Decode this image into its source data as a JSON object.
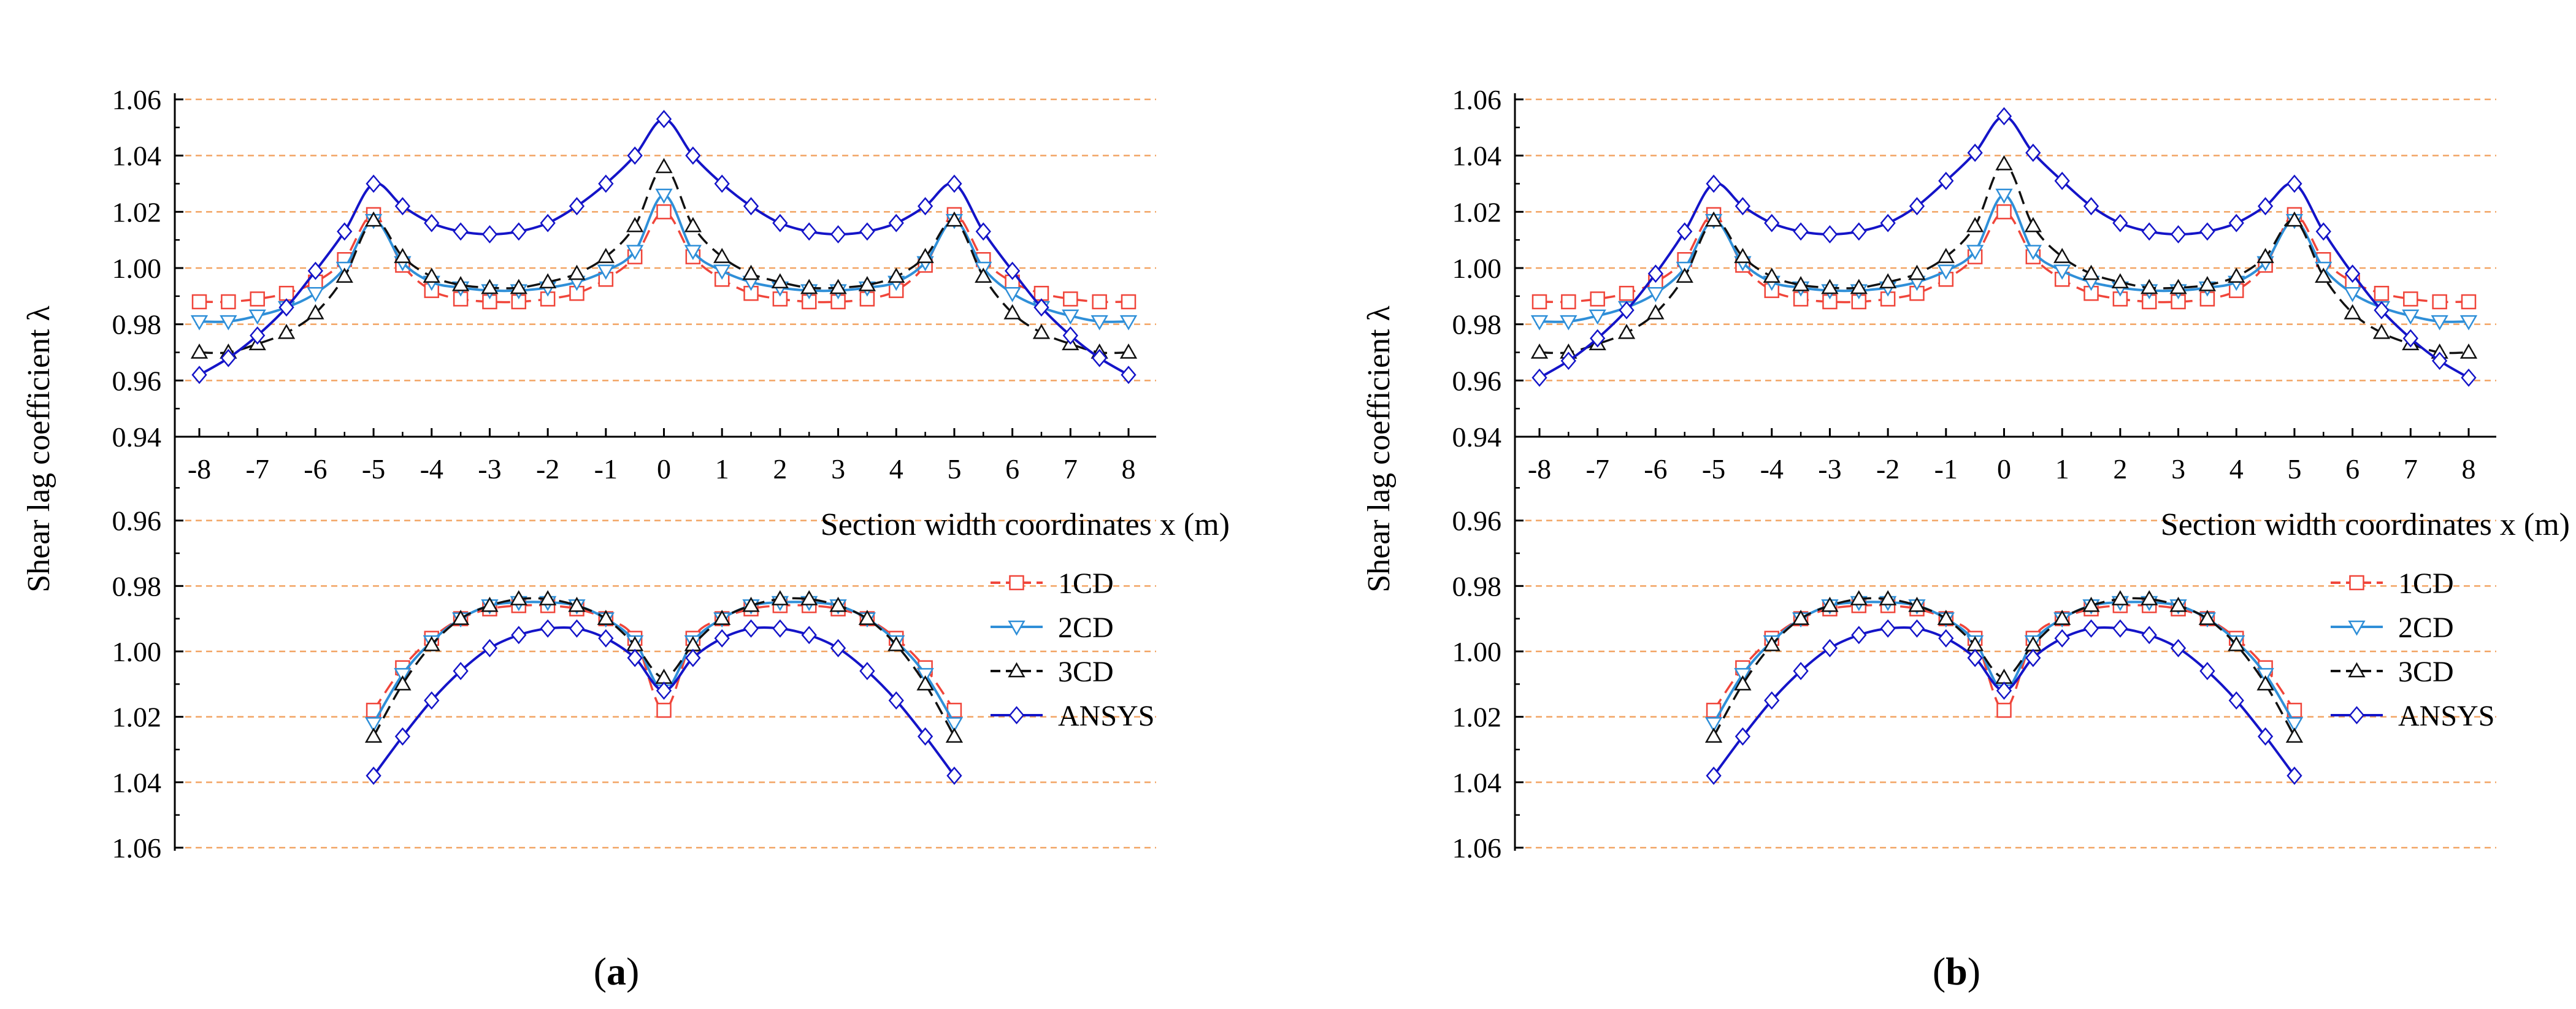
{
  "figure": {
    "panels": [
      {
        "label": "(a)",
        "label_letter": "a"
      },
      {
        "label": "(b)",
        "label_letter": "b"
      }
    ]
  },
  "colors": {
    "1CD": "#f0453a",
    "2CD": "#2f8fd8",
    "3CD": "#111111",
    "ANSYS": "#1414c8",
    "grid": "#f2a463"
  },
  "chart_data": [
    {
      "panel": "(a)",
      "type": "line",
      "title": "",
      "xlabel": "Section width coordinates x (m)",
      "ylabel": "Shear lag coefficient λ",
      "xlim": [
        -8.5,
        8.5
      ],
      "x_ticks": [
        -8,
        -7,
        -6,
        -5,
        -4,
        -3,
        -2,
        -1,
        0,
        1,
        2,
        3,
        4,
        5,
        6,
        7,
        8
      ],
      "y_ticks_top": [
        "0.94",
        "0.96",
        "0.98",
        "1.00",
        "1.02",
        "1.04",
        "1.06"
      ],
      "y_ticks_bottom": [
        "0.96",
        "0.98",
        "1.00",
        "1.02",
        "1.04",
        "1.06"
      ],
      "top_ylim": [
        0.94,
        1.06
      ],
      "bottom_ylim": [
        0.94,
        1.06
      ],
      "bottom_axis_inverted": true,
      "grid": true,
      "legend_position": "lower-right",
      "top_flange": {
        "x": [
          -8,
          -7.5,
          -7,
          -6.5,
          -6,
          -5.5,
          -5,
          -4.5,
          -4,
          -3.5,
          -3,
          -2.5,
          -2,
          -1.5,
          -1,
          -0.5,
          0,
          0.5,
          1,
          1.5,
          2,
          2.5,
          3,
          3.5,
          4,
          4.5,
          5,
          5.5,
          6,
          6.5,
          7,
          7.5,
          8
        ],
        "series": [
          {
            "name": "1CD",
            "style": "dashed",
            "marker": "square",
            "values": [
              0.988,
              0.988,
              0.989,
              0.991,
              0.995,
              1.003,
              1.019,
              1.001,
              0.992,
              0.989,
              0.988,
              0.988,
              0.989,
              0.991,
              0.996,
              1.004,
              1.02,
              1.004,
              0.996,
              0.991,
              0.989,
              0.988,
              0.988,
              0.989,
              0.992,
              1.001,
              1.019,
              1.003,
              0.995,
              0.991,
              0.989,
              0.988,
              0.988
            ]
          },
          {
            "name": "2CD",
            "style": "solid",
            "marker": "triangle-down",
            "values": [
              0.981,
              0.981,
              0.983,
              0.986,
              0.991,
              1.0,
              1.017,
              1.002,
              0.995,
              0.993,
              0.992,
              0.992,
              0.993,
              0.995,
              0.999,
              1.006,
              1.026,
              1.006,
              0.999,
              0.995,
              0.993,
              0.992,
              0.992,
              0.993,
              0.995,
              1.002,
              1.017,
              1.0,
              0.991,
              0.986,
              0.983,
              0.981,
              0.981
            ]
          },
          {
            "name": "3CD",
            "style": "dashed",
            "marker": "triangle-up",
            "values": [
              0.97,
              0.97,
              0.973,
              0.977,
              0.984,
              0.997,
              1.017,
              1.004,
              0.997,
              0.994,
              0.993,
              0.993,
              0.995,
              0.998,
              1.004,
              1.015,
              1.036,
              1.015,
              1.004,
              0.998,
              0.995,
              0.993,
              0.993,
              0.994,
              0.997,
              1.004,
              1.017,
              0.997,
              0.984,
              0.977,
              0.973,
              0.97,
              0.97
            ]
          },
          {
            "name": "ANSYS",
            "style": "solid",
            "marker": "diamond",
            "values": [
              0.962,
              0.968,
              0.976,
              0.986,
              0.999,
              1.013,
              1.03,
              1.022,
              1.016,
              1.013,
              1.012,
              1.013,
              1.016,
              1.022,
              1.03,
              1.04,
              1.053,
              1.04,
              1.03,
              1.022,
              1.016,
              1.013,
              1.012,
              1.013,
              1.016,
              1.022,
              1.03,
              1.013,
              0.999,
              0.986,
              0.976,
              0.968,
              0.962
            ]
          }
        ]
      },
      "bottom_flange": {
        "x": [
          -5,
          -4.5,
          -4,
          -3.5,
          -3,
          -2.5,
          -2,
          -1.5,
          -1,
          -0.5,
          0,
          0.5,
          1,
          1.5,
          2,
          2.5,
          3,
          3.5,
          4,
          4.5,
          5
        ],
        "series": [
          {
            "name": "1CD",
            "style": "dashed",
            "marker": "square",
            "values": [
              1.018,
              1.005,
              0.996,
              0.99,
              0.987,
              0.986,
              0.986,
              0.987,
              0.99,
              0.996,
              1.018,
              0.996,
              0.99,
              0.987,
              0.986,
              0.986,
              0.987,
              0.99,
              0.996,
              1.005,
              1.018
            ]
          },
          {
            "name": "2CD",
            "style": "solid",
            "marker": "triangle-down",
            "values": [
              1.022,
              1.007,
              0.997,
              0.99,
              0.986,
              0.985,
              0.985,
              0.986,
              0.99,
              0.997,
              1.012,
              0.997,
              0.99,
              0.986,
              0.985,
              0.985,
              0.986,
              0.99,
              0.997,
              1.007,
              1.022
            ]
          },
          {
            "name": "3CD",
            "style": "dashed",
            "marker": "triangle-up",
            "values": [
              1.026,
              1.01,
              0.998,
              0.99,
              0.986,
              0.984,
              0.984,
              0.986,
              0.99,
              0.998,
              1.008,
              0.998,
              0.99,
              0.986,
              0.984,
              0.984,
              0.986,
              0.99,
              0.998,
              1.01,
              1.026
            ]
          },
          {
            "name": "ANSYS",
            "style": "solid",
            "marker": "diamond",
            "values": [
              1.038,
              1.026,
              1.015,
              1.006,
              0.999,
              0.995,
              0.993,
              0.993,
              0.996,
              1.002,
              1.012,
              1.002,
              0.996,
              0.993,
              0.993,
              0.995,
              0.999,
              1.006,
              1.015,
              1.026,
              1.038
            ]
          }
        ]
      }
    },
    {
      "panel": "(b)",
      "type": "line",
      "title": "",
      "xlabel": "Section width coordinates x (m)",
      "ylabel": "Shear lag coefficient λ",
      "xlim": [
        -8.5,
        8.5
      ],
      "x_ticks": [
        -8,
        -7,
        -6,
        -5,
        -4,
        -3,
        -2,
        -1,
        0,
        1,
        2,
        3,
        4,
        5,
        6,
        7,
        8
      ],
      "y_ticks_top": [
        "0.94",
        "0.96",
        "0.98",
        "1.00",
        "1.02",
        "1.04",
        "1.06"
      ],
      "y_ticks_bottom": [
        "0.96",
        "0.98",
        "1.00",
        "1.02",
        "1.04",
        "1.06"
      ],
      "top_ylim": [
        0.94,
        1.06
      ],
      "bottom_ylim": [
        0.94,
        1.06
      ],
      "bottom_axis_inverted": true,
      "grid": true,
      "legend_position": "lower-right",
      "top_flange": {
        "x": [
          -8,
          -7.5,
          -7,
          -6.5,
          -6,
          -5.5,
          -5,
          -4.5,
          -4,
          -3.5,
          -3,
          -2.5,
          -2,
          -1.5,
          -1,
          -0.5,
          0,
          0.5,
          1,
          1.5,
          2,
          2.5,
          3,
          3.5,
          4,
          4.5,
          5,
          5.5,
          6,
          6.5,
          7,
          7.5,
          8
        ],
        "series": [
          {
            "name": "1CD",
            "style": "dashed",
            "marker": "square",
            "values": [
              0.988,
              0.988,
              0.989,
              0.991,
              0.995,
              1.003,
              1.019,
              1.001,
              0.992,
              0.989,
              0.988,
              0.988,
              0.989,
              0.991,
              0.996,
              1.004,
              1.02,
              1.004,
              0.996,
              0.991,
              0.989,
              0.988,
              0.988,
              0.989,
              0.992,
              1.001,
              1.019,
              1.003,
              0.995,
              0.991,
              0.989,
              0.988,
              0.988
            ]
          },
          {
            "name": "2CD",
            "style": "solid",
            "marker": "triangle-down",
            "values": [
              0.981,
              0.981,
              0.983,
              0.986,
              0.991,
              1.0,
              1.017,
              1.002,
              0.995,
              0.993,
              0.992,
              0.992,
              0.993,
              0.995,
              0.999,
              1.006,
              1.026,
              1.006,
              0.999,
              0.995,
              0.993,
              0.992,
              0.992,
              0.993,
              0.995,
              1.002,
              1.017,
              1.0,
              0.991,
              0.986,
              0.983,
              0.981,
              0.981
            ]
          },
          {
            "name": "3CD",
            "style": "dashed",
            "marker": "triangle-up",
            "values": [
              0.97,
              0.97,
              0.973,
              0.977,
              0.984,
              0.997,
              1.017,
              1.004,
              0.997,
              0.994,
              0.993,
              0.993,
              0.995,
              0.998,
              1.004,
              1.015,
              1.037,
              1.015,
              1.004,
              0.998,
              0.995,
              0.993,
              0.993,
              0.994,
              0.997,
              1.004,
              1.017,
              0.997,
              0.984,
              0.977,
              0.973,
              0.97,
              0.97
            ]
          },
          {
            "name": "ANSYS",
            "style": "solid",
            "marker": "diamond",
            "values": [
              0.961,
              0.967,
              0.975,
              0.985,
              0.998,
              1.013,
              1.03,
              1.022,
              1.016,
              1.013,
              1.012,
              1.013,
              1.016,
              1.022,
              1.031,
              1.041,
              1.054,
              1.041,
              1.031,
              1.022,
              1.016,
              1.013,
              1.012,
              1.013,
              1.016,
              1.022,
              1.03,
              1.013,
              0.998,
              0.985,
              0.975,
              0.967,
              0.961
            ]
          }
        ]
      },
      "bottom_flange": {
        "x": [
          -5,
          -4.5,
          -4,
          -3.5,
          -3,
          -2.5,
          -2,
          -1.5,
          -1,
          -0.5,
          0,
          0.5,
          1,
          1.5,
          2,
          2.5,
          3,
          3.5,
          4,
          4.5,
          5
        ],
        "series": [
          {
            "name": "1CD",
            "style": "dashed",
            "marker": "square",
            "values": [
              1.018,
              1.005,
              0.996,
              0.99,
              0.987,
              0.986,
              0.986,
              0.987,
              0.99,
              0.996,
              1.018,
              0.996,
              0.99,
              0.987,
              0.986,
              0.986,
              0.987,
              0.99,
              0.996,
              1.005,
              1.018
            ]
          },
          {
            "name": "2CD",
            "style": "solid",
            "marker": "triangle-down",
            "values": [
              1.022,
              1.007,
              0.997,
              0.99,
              0.986,
              0.985,
              0.985,
              0.986,
              0.99,
              0.997,
              1.012,
              0.997,
              0.99,
              0.986,
              0.985,
              0.985,
              0.986,
              0.99,
              0.997,
              1.007,
              1.022
            ]
          },
          {
            "name": "3CD",
            "style": "dashed",
            "marker": "triangle-up",
            "values": [
              1.026,
              1.01,
              0.998,
              0.99,
              0.986,
              0.984,
              0.984,
              0.986,
              0.99,
              0.998,
              1.008,
              0.998,
              0.99,
              0.986,
              0.984,
              0.984,
              0.986,
              0.99,
              0.998,
              1.01,
              1.026
            ]
          },
          {
            "name": "ANSYS",
            "style": "solid",
            "marker": "diamond",
            "values": [
              1.038,
              1.026,
              1.015,
              1.006,
              0.999,
              0.995,
              0.993,
              0.993,
              0.996,
              1.002,
              1.012,
              1.002,
              0.996,
              0.993,
              0.993,
              0.995,
              0.999,
              1.006,
              1.015,
              1.026,
              1.038
            ]
          }
        ]
      }
    }
  ]
}
